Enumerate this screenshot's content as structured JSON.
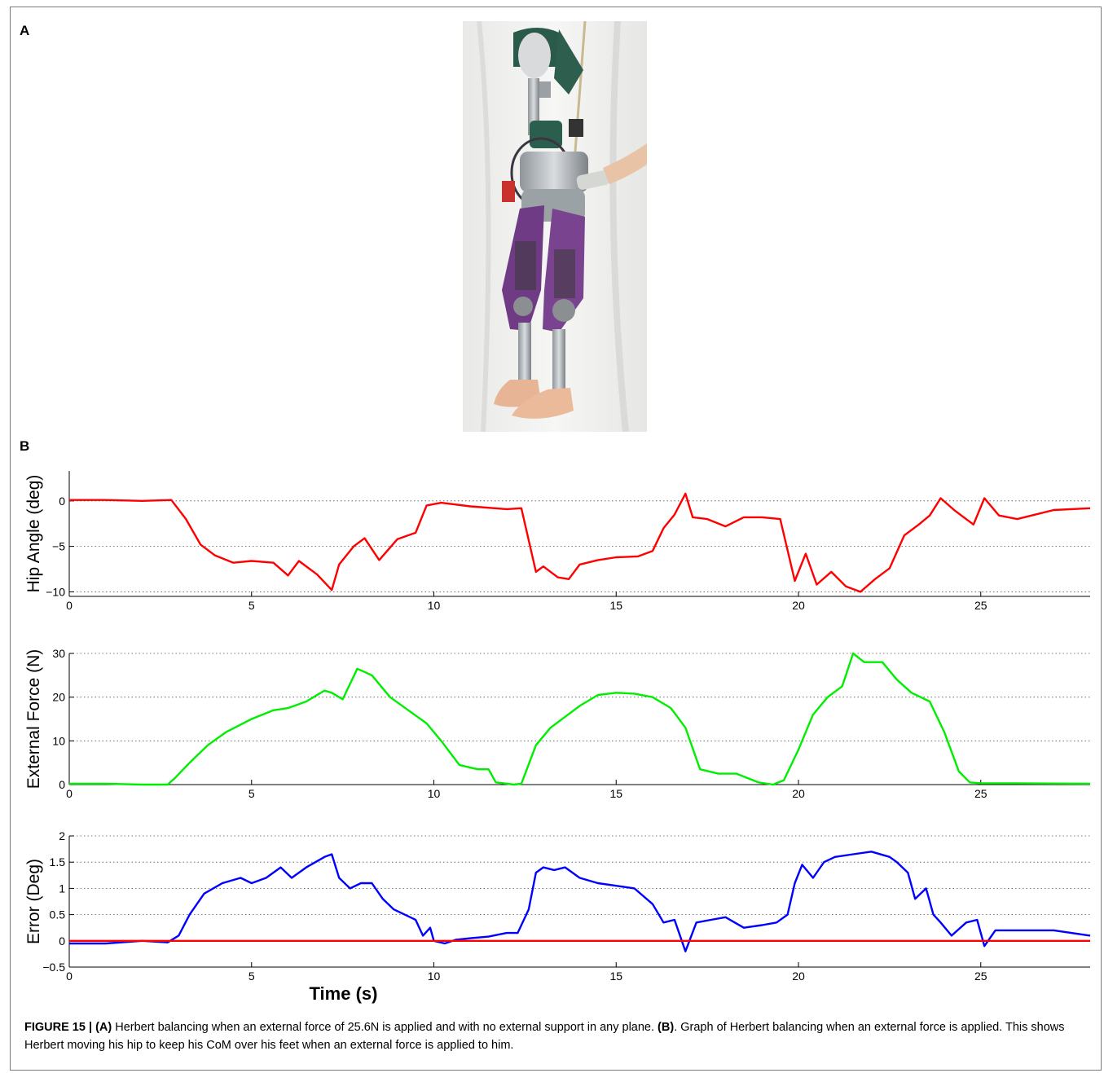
{
  "panels": {
    "a": "A",
    "b": "B"
  },
  "chart_data": [
    {
      "type": "line",
      "ylabel": "Hip Angle (deg)",
      "xlim": [
        0,
        28
      ],
      "ylim": [
        -10.5,
        3.3
      ],
      "yticks": [
        -10,
        -5,
        0
      ],
      "xticks": [
        0,
        5,
        10,
        15,
        20,
        25
      ],
      "grid": "dotted-horizontal",
      "series": [
        {
          "color": "#ff0000",
          "x": [
            0,
            1,
            2,
            2.8,
            3.2,
            3.6,
            4,
            4.5,
            5,
            5.6,
            6,
            6.3,
            6.8,
            7.2,
            7.4,
            7.8,
            8.1,
            8.5,
            9,
            9.5,
            9.8,
            10.2,
            11,
            12,
            12.4,
            12.8,
            13,
            13.4,
            13.7,
            14,
            14.5,
            15,
            15.6,
            16,
            16.3,
            16.6,
            16.9,
            17.1,
            17.5,
            18,
            18.5,
            19,
            19.5,
            19.9,
            20.2,
            20.5,
            20.9,
            21.3,
            21.7,
            22.1,
            22.5,
            22.9,
            23.3,
            23.6,
            23.9,
            24.3,
            24.8,
            25.1,
            25.5,
            26,
            27,
            28
          ],
          "y": [
            0.1,
            0.1,
            0,
            0.1,
            -2,
            -4.8,
            -6,
            -6.8,
            -6.6,
            -6.8,
            -8.2,
            -6.6,
            -8.1,
            -9.8,
            -7,
            -5,
            -4.1,
            -6.5,
            -4.2,
            -3.5,
            -0.5,
            -0.2,
            -0.6,
            -0.9,
            -0.8,
            -7.8,
            -7.2,
            -8.4,
            -8.6,
            -7,
            -6.5,
            -6.2,
            -6.1,
            -5.5,
            -3,
            -1.5,
            0.8,
            -1.8,
            -2,
            -2.8,
            -1.8,
            -1.8,
            -2,
            -8.8,
            -5.8,
            -9.2,
            -7.8,
            -9.4,
            -10,
            -8.6,
            -7.4,
            -3.8,
            -2.6,
            -1.6,
            0.3,
            -1.1,
            -2.6,
            0.3,
            -1.6,
            -2,
            -1,
            -0.8
          ]
        }
      ]
    },
    {
      "type": "line",
      "ylabel": "External Force (N)",
      "xlim": [
        0,
        28
      ],
      "ylim": [
        0,
        30
      ],
      "yticks": [
        0,
        10,
        20,
        30
      ],
      "xticks": [
        0,
        5,
        10,
        15,
        20,
        25
      ],
      "grid": "dotted-horizontal",
      "series": [
        {
          "color": "#00ee00",
          "x": [
            0,
            1,
            2,
            2.7,
            2.9,
            3.3,
            3.8,
            4.3,
            5,
            5.6,
            6,
            6.5,
            7,
            7.2,
            7.5,
            7.9,
            8.3,
            8.8,
            9.3,
            9.8,
            10.2,
            10.7,
            11.2,
            11.5,
            11.7,
            12.2,
            12.4,
            12.8,
            13.2,
            13.6,
            14,
            14.5,
            15,
            15.5,
            16,
            16.5,
            16.9,
            17.3,
            17.8,
            18.3,
            18.9,
            19.3,
            19.6,
            20,
            20.4,
            20.8,
            21.2,
            21.5,
            21.8,
            22.3,
            22.7,
            23.1,
            23.6,
            24,
            24.4,
            24.7,
            25,
            26,
            28
          ],
          "y": [
            0.2,
            0.2,
            0,
            0,
            1.5,
            5,
            9,
            12,
            15,
            17,
            17.5,
            19,
            21.5,
            21,
            19.5,
            26.5,
            25,
            20,
            17,
            14,
            10,
            4.5,
            3.5,
            3.5,
            0.5,
            0,
            0.2,
            9,
            13,
            15.5,
            18,
            20.5,
            21,
            20.8,
            20,
            17.5,
            13,
            3.5,
            2.5,
            2.5,
            0.5,
            0,
            1,
            8,
            16,
            20,
            22.5,
            30,
            28,
            28,
            24,
            21,
            19,
            12,
            3,
            0.5,
            0.3,
            0.3,
            0.2
          ]
        }
      ]
    },
    {
      "type": "line",
      "xlabel": "Time (s)",
      "ylabel": "Error (Deg)",
      "xlim": [
        0,
        28
      ],
      "ylim": [
        -0.5,
        2
      ],
      "yticks": [
        -0.5,
        0,
        0.5,
        1,
        1.5,
        2
      ],
      "xticks": [
        0,
        5,
        10,
        15,
        20,
        25
      ],
      "grid": "dotted-horizontal",
      "series": [
        {
          "color": "#0000ff",
          "x": [
            0,
            1,
            2,
            2.7,
            3,
            3.3,
            3.7,
            4.2,
            4.7,
            5,
            5.4,
            5.8,
            6.1,
            6.5,
            7,
            7.2,
            7.4,
            7.7,
            8,
            8.3,
            8.6,
            8.9,
            9.2,
            9.5,
            9.7,
            9.9,
            10,
            10.3,
            10.6,
            11,
            11.5,
            12,
            12.3,
            12.6,
            12.8,
            13,
            13.3,
            13.6,
            14,
            14.5,
            15,
            15.5,
            16,
            16.3,
            16.6,
            16.9,
            17.2,
            17.6,
            18,
            18.5,
            19,
            19.4,
            19.7,
            19.9,
            20.1,
            20.4,
            20.7,
            21,
            21.5,
            22,
            22.5,
            22.7,
            23,
            23.2,
            23.5,
            23.7,
            23.9,
            24.2,
            24.6,
            24.9,
            25.1,
            25.4,
            26,
            27,
            28
          ],
          "y": [
            -0.05,
            -0.05,
            0,
            -0.03,
            0.1,
            0.5,
            0.9,
            1.1,
            1.2,
            1.1,
            1.2,
            1.4,
            1.2,
            1.4,
            1.6,
            1.65,
            1.2,
            1.0,
            1.1,
            1.1,
            0.8,
            0.6,
            0.5,
            0.4,
            0.1,
            0.25,
            0.0,
            -0.05,
            0.02,
            0.05,
            0.08,
            0.15,
            0.15,
            0.6,
            1.3,
            1.4,
            1.35,
            1.4,
            1.2,
            1.1,
            1.05,
            1.0,
            0.7,
            0.35,
            0.4,
            -0.2,
            0.35,
            0.4,
            0.45,
            0.25,
            0.3,
            0.35,
            0.5,
            1.1,
            1.45,
            1.2,
            1.5,
            1.6,
            1.65,
            1.7,
            1.6,
            1.5,
            1.3,
            0.8,
            1.0,
            0.5,
            0.35,
            0.1,
            0.35,
            0.4,
            -0.1,
            0.2,
            0.2,
            0.2,
            0.1
          ]
        },
        {
          "color": "#ff0000",
          "x": [
            0,
            28
          ],
          "y": [
            0,
            0
          ]
        }
      ]
    }
  ],
  "caption": {
    "figure": "FIGURE 15 |",
    "a_label": "(A)",
    "a_text": "Herbert balancing when an external force of 25.6N is applied and with no external support in any plane.",
    "b_label": "(B)",
    "b_text": ". Graph of Herbert balancing when an external force is applied. This shows Herbert moving his hip to keep his CoM over his feet when an external force is applied to him."
  }
}
